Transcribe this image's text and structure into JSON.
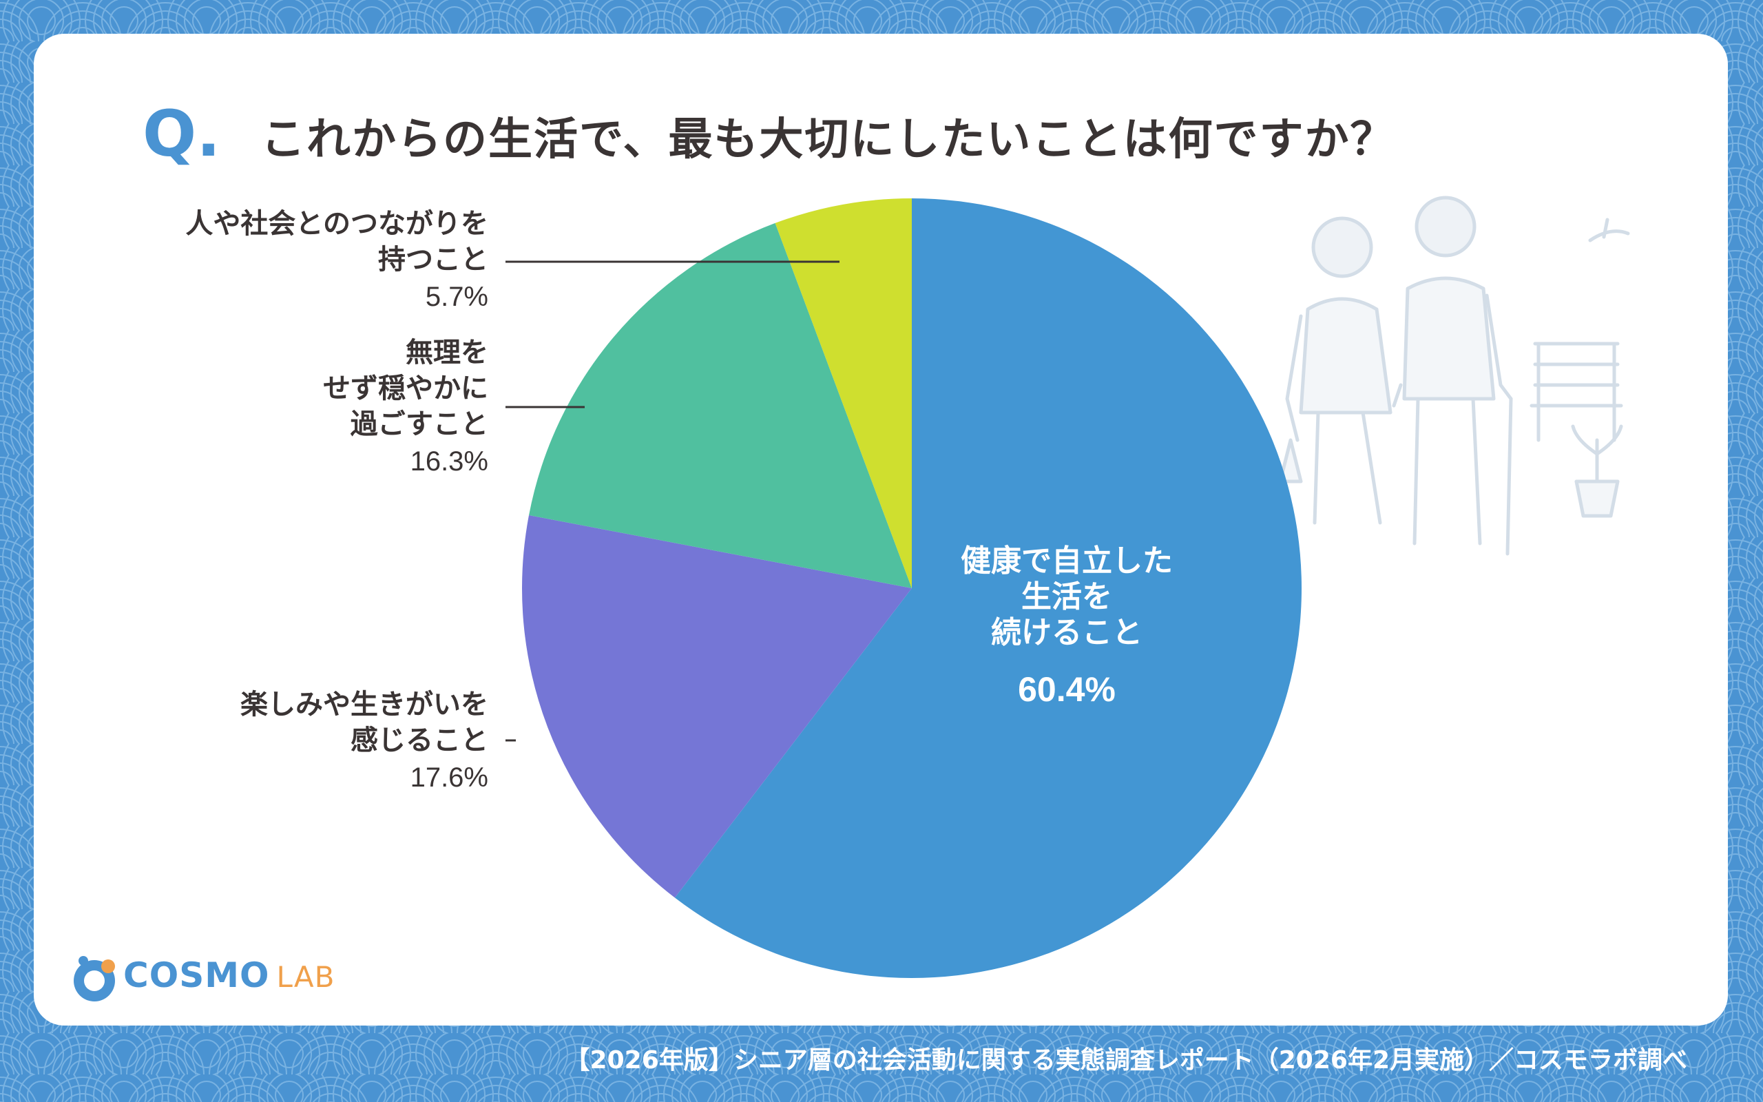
{
  "header": {
    "q_mark": "Q.",
    "question": "これからの生活で、最も大切にしたいことは何ですか？"
  },
  "chart_data": {
    "type": "pie",
    "title": "これからの生活で、最も大切にしたいことは何ですか？",
    "unit": "%",
    "slices": [
      {
        "lines": [
          "健康で自立した",
          "生活を",
          "続けること"
        ],
        "value": 60.4,
        "value_label": "60.4%",
        "color": "#4396d3"
      },
      {
        "lines": [
          "楽しみや生きがいを",
          "感じること"
        ],
        "value": 17.6,
        "value_label": "17.6%",
        "color": "#7576d6"
      },
      {
        "lines": [
          "無理を",
          "せず穏やかに",
          "過ごすこと"
        ],
        "value": 16.3,
        "value_label": "16.3%",
        "color": "#50c09f"
      },
      {
        "lines": [
          "人や社会とのつながりを",
          "持つこと"
        ],
        "value": 5.7,
        "value_label": "5.7%",
        "color": "#cfdf2f"
      }
    ]
  },
  "logo": {
    "brand": "COSMO",
    "brand_sub": "LAB"
  },
  "footer": {
    "source": "【2026年版】シニア層の社会活動に関する実態調査レポート（2026年2月実施）／コスモラボ調べ"
  },
  "colors": {
    "background": "#4a93d2",
    "card": "#ffffff",
    "text": "#3a3434",
    "accent": "#4a93d2",
    "logo_accent": "#f0a04b"
  }
}
